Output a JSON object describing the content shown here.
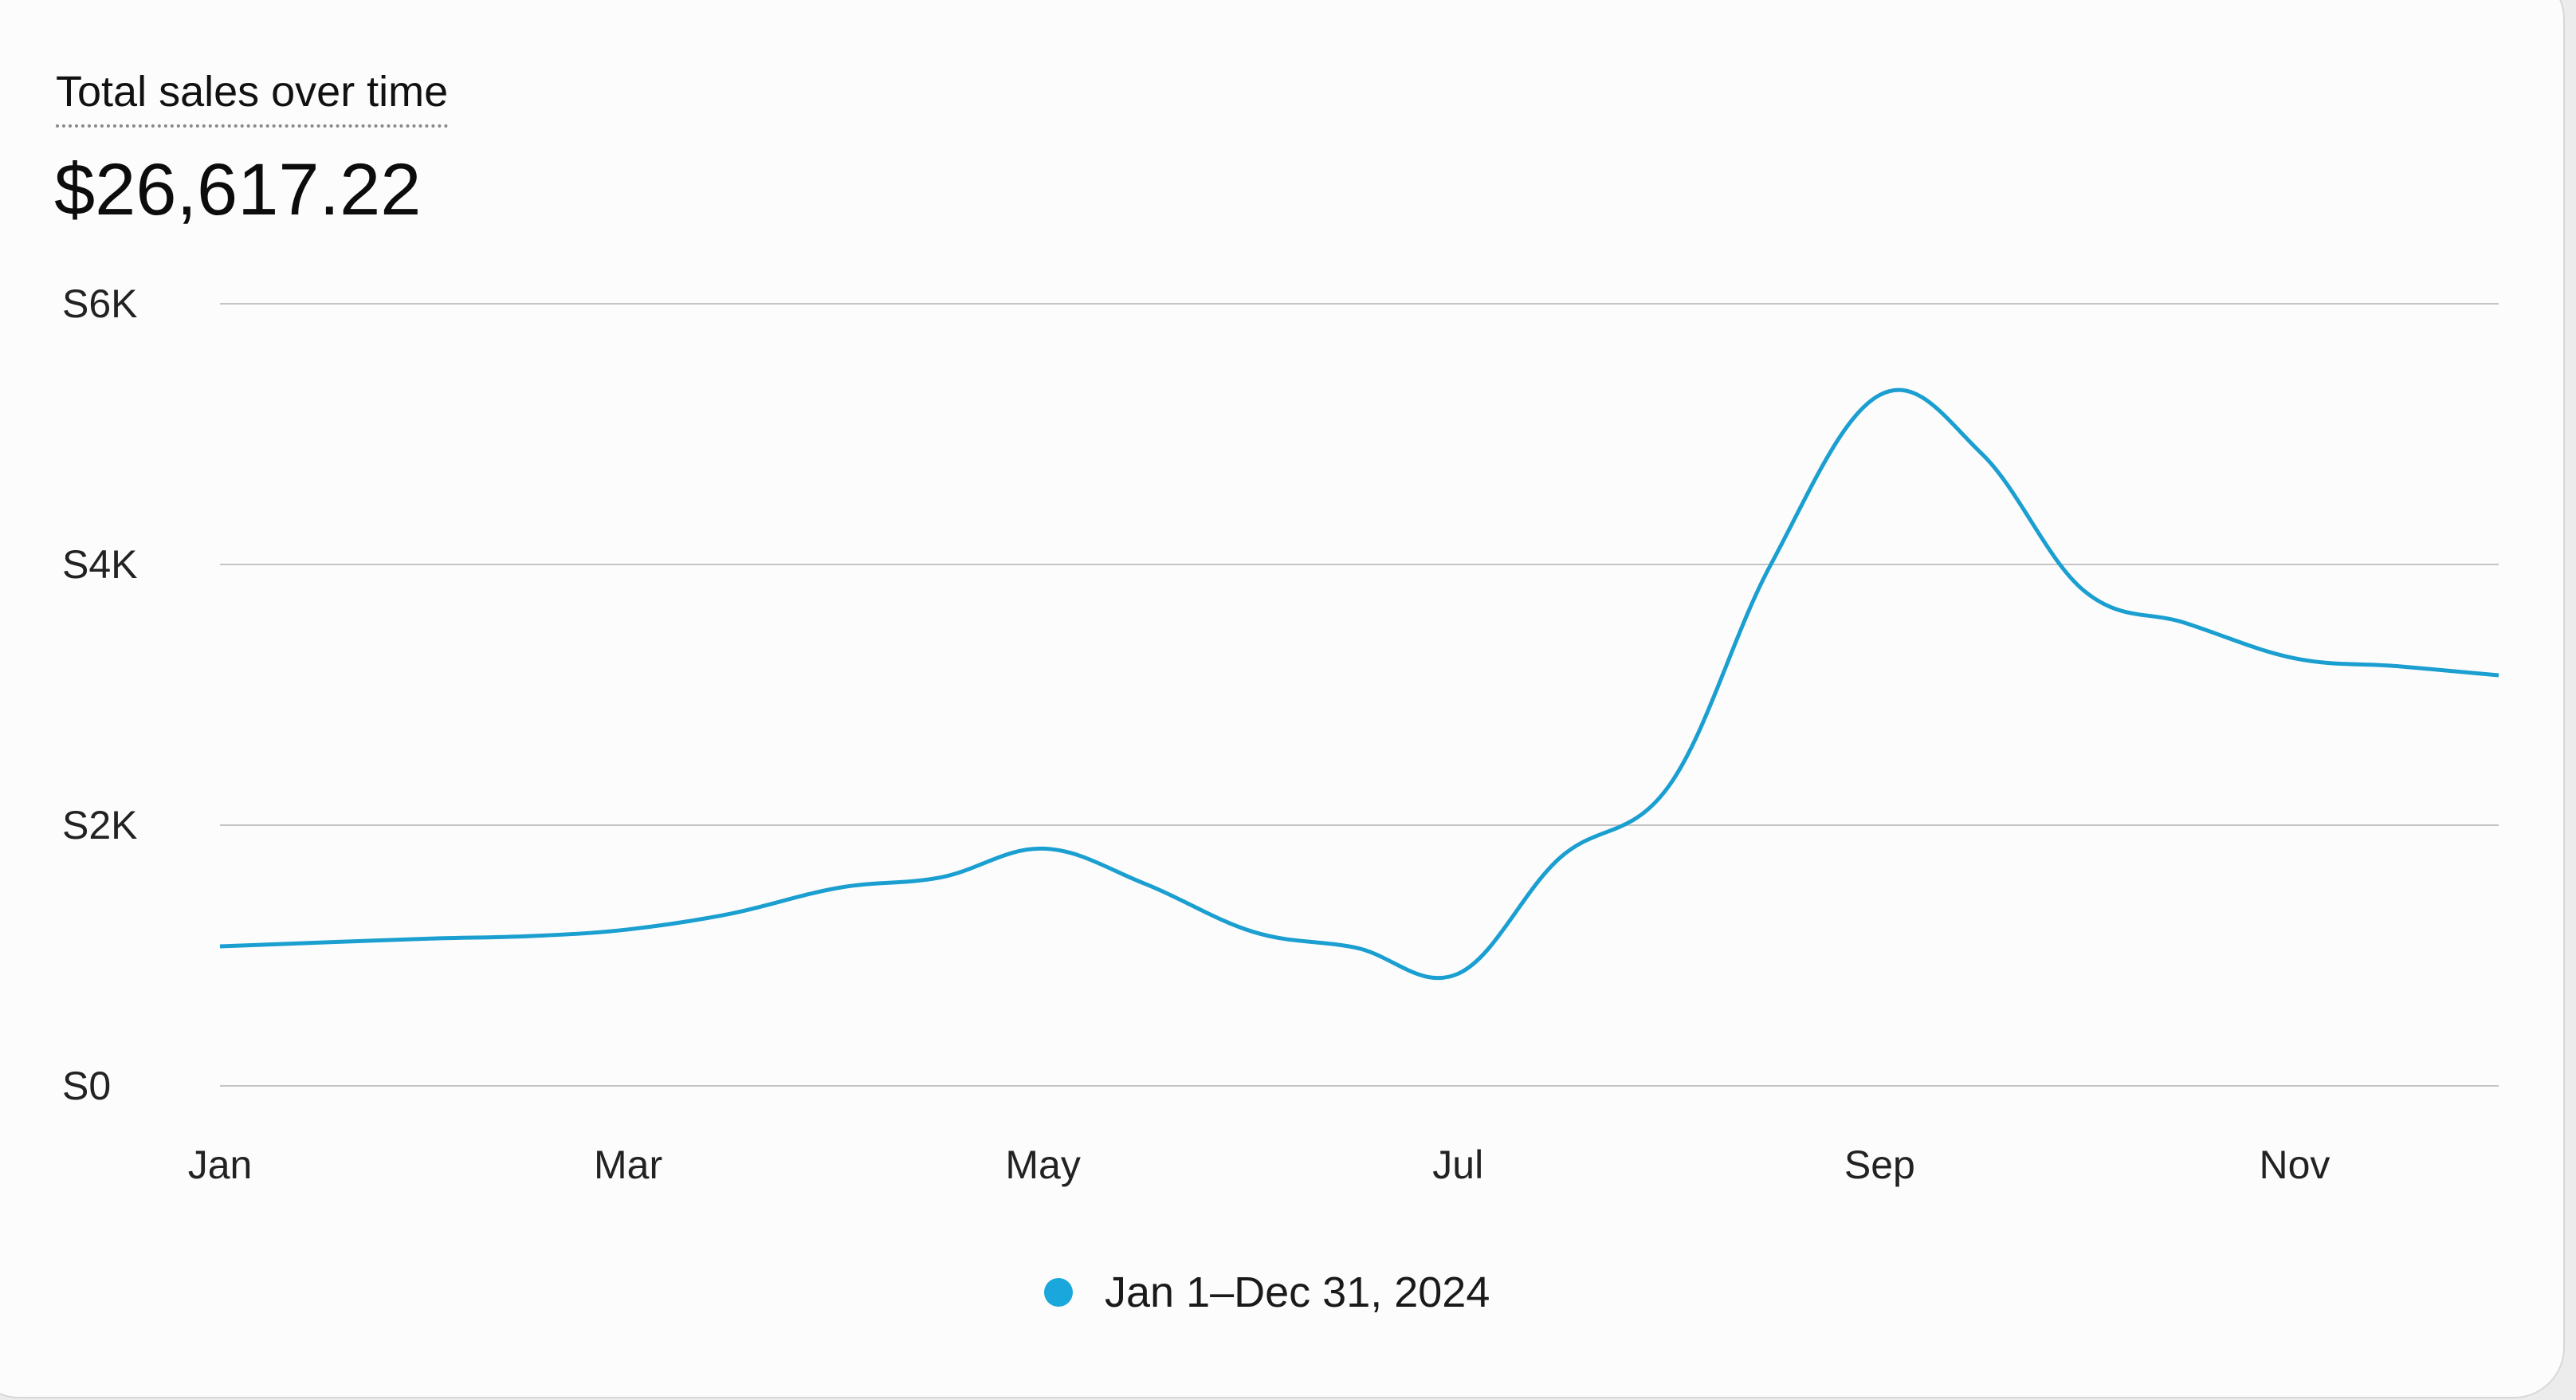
{
  "card": {
    "title": "Total sales over time",
    "total": "$26,617.22"
  },
  "chart_data": {
    "type": "line",
    "title": "Total sales over time",
    "ylim": [
      0,
      6000
    ],
    "yticks": [
      0,
      2000,
      4000,
      6000
    ],
    "ytick_labels": [
      "S0",
      "S2K",
      "S4K",
      "S6K"
    ],
    "xlim": [
      "2024-01-01",
      "2024-12-01"
    ],
    "xtick_labels": [
      "Jan",
      "Mar",
      "May",
      "Jul",
      "Sep",
      "Nov"
    ],
    "xtick_values": [
      "2024-01-01",
      "2024-03-01",
      "2024-05-01",
      "2024-07-01",
      "2024-09-01",
      "2024-11-01"
    ],
    "grid": true,
    "legend_position": "bottom",
    "series": [
      {
        "name": "Jan 1–Dec 31, 2024",
        "color": "#1a9fd0",
        "x": [
          "2024-01-01",
          "2024-01-16",
          "2024-02-01",
          "2024-02-16",
          "2024-03-01",
          "2024-03-16",
          "2024-04-01",
          "2024-04-16",
          "2024-05-01",
          "2024-05-16",
          "2024-06-01",
          "2024-06-16",
          "2024-07-01",
          "2024-07-16",
          "2024-08-01",
          "2024-08-16",
          "2024-09-01",
          "2024-09-16",
          "2024-10-01",
          "2024-10-16",
          "2024-11-01",
          "2024-11-16",
          "2024-12-01"
        ],
        "values": [
          1070,
          1100,
          1130,
          1150,
          1200,
          1320,
          1520,
          1600,
          1820,
          1550,
          1180,
          1060,
          860,
          1750,
          2300,
          4000,
          5300,
          4850,
          3800,
          3550,
          3280,
          3220,
          3150
        ]
      }
    ]
  },
  "legend": {
    "label": "Jan 1–Dec 31, 2024",
    "dot_color": "#1aa7dc"
  }
}
